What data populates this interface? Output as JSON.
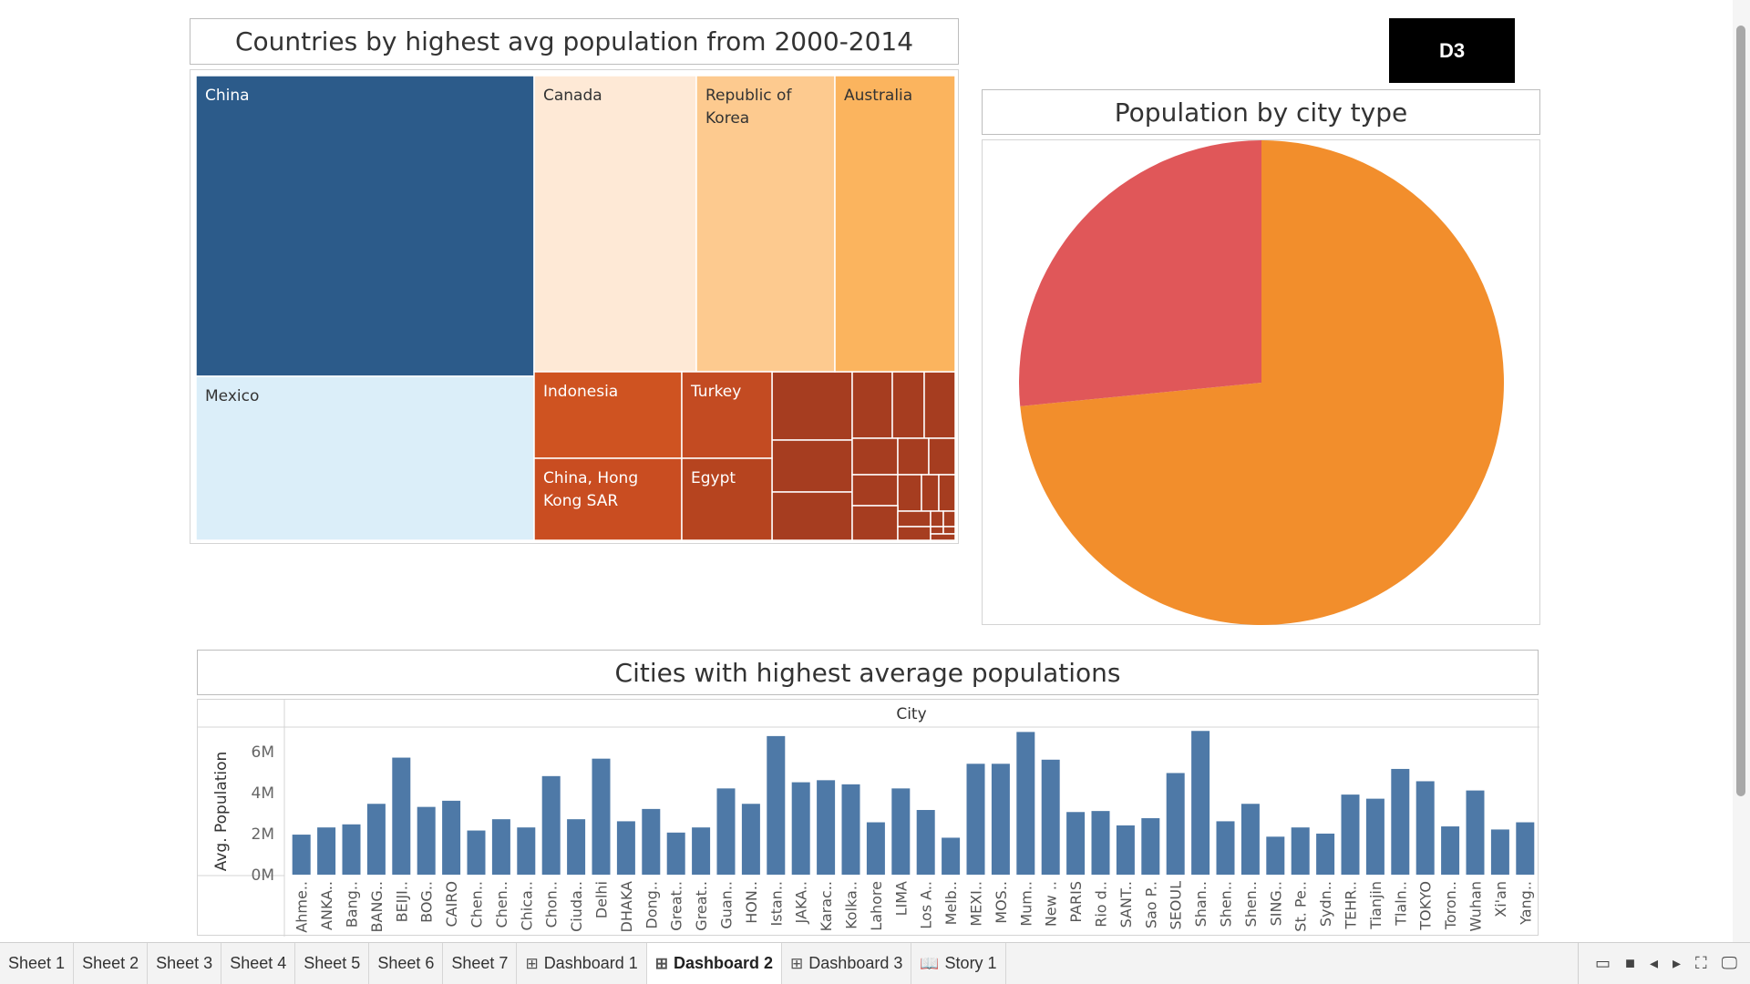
{
  "treemap": {
    "title": "Countries by highest avg population from 2000-2014",
    "labels": {
      "china": "China",
      "mexico": "Mexico",
      "canada": "Canada",
      "korea": "Republic of Korea",
      "australia": "Australia",
      "indonesia": "Indonesia",
      "turkey": "Turkey",
      "hongkong": "China, Hong Kong SAR",
      "egypt": "Egypt"
    },
    "colors": {
      "china": "#2c5b8a",
      "mexico": "#dbeef9",
      "canada": "#fee9d6",
      "korea": "#fdca8f",
      "australia": "#fbb45e",
      "indonesia": "#cf5321",
      "turkey": "#c34b22",
      "hongkong": "#c94d21",
      "egypt": "#b6441f",
      "small": "#a63d20"
    }
  },
  "d3_button": "D3",
  "pie": {
    "title": "Population by city type",
    "slices": [
      {
        "share": 0.7345,
        "color": "#f28e2c"
      },
      {
        "share": 0.2655,
        "color": "#e05759"
      }
    ]
  },
  "bar_chart": {
    "title": "Cities with highest average populations"
  },
  "chart_data": {
    "type": "bar",
    "title": "Cities with highest average populations",
    "column_header": "City",
    "ylabel": "Avg. Population",
    "ylim": [
      0,
      7100000
    ],
    "yticks": [
      {
        "value": 0,
        "label": "0M"
      },
      {
        "value": 2000000,
        "label": "2M"
      },
      {
        "value": 4000000,
        "label": "4M"
      },
      {
        "value": 6000000,
        "label": "6M"
      }
    ],
    "bar_color": "#4e79a7",
    "categories": [
      "Ahme..",
      "ANKA..",
      "Bang..",
      "BANG..",
      "BEIJI..",
      "BOG..",
      "CAIRO",
      "Chen..",
      "Chen..",
      "Chica..",
      "Chon..",
      "Ciuda..",
      "Delhi",
      "DHAKA",
      "Dong..",
      "Great..",
      "Great..",
      "Guan..",
      "HON..",
      "Istan..",
      "JAKA..",
      "Karac..",
      "Kolka..",
      "Lahore",
      "LIMA",
      "Los A..",
      "Melb..",
      "MEXI..",
      "MOS..",
      "Mum..",
      "New ..",
      "PARIS",
      "Rio d..",
      "SANT..",
      "Sao P..",
      "SEOUL",
      "Shan..",
      "Shen..",
      "Shen..",
      "SING..",
      "St. Pe..",
      "Sydn..",
      "TEHR..",
      "Tianjin",
      "Tlaln..",
      "TOKYO",
      "Toron..",
      "Wuhan",
      "Xi'an",
      "Yang.."
    ],
    "values": [
      1950000,
      2300000,
      2450000,
      3450000,
      5700000,
      3300000,
      3600000,
      2150000,
      2700000,
      2300000,
      4800000,
      2700000,
      5650000,
      2600000,
      3200000,
      2050000,
      2300000,
      4200000,
      3450000,
      6750000,
      4500000,
      4600000,
      4400000,
      2550000,
      4200000,
      3150000,
      1800000,
      5400000,
      5400000,
      6950000,
      5600000,
      3050000,
      3100000,
      2400000,
      2750000,
      4950000,
      7000000,
      2600000,
      3450000,
      1850000,
      2300000,
      2000000,
      3900000,
      3700000,
      5150000,
      4550000,
      2350000,
      4100000,
      2200000,
      2550000
    ]
  },
  "tabs": [
    {
      "label": "Sheet 1",
      "icon": ""
    },
    {
      "label": "Sheet 2",
      "icon": ""
    },
    {
      "label": "Sheet 3",
      "icon": ""
    },
    {
      "label": "Sheet 4",
      "icon": ""
    },
    {
      "label": "Sheet 5",
      "icon": ""
    },
    {
      "label": "Sheet 6",
      "icon": ""
    },
    {
      "label": "Sheet 7",
      "icon": ""
    },
    {
      "label": "Dashboard 1",
      "icon": "dashboard-icon"
    },
    {
      "label": "Dashboard 2",
      "icon": "dashboard-icon",
      "active": true
    },
    {
      "label": "Dashboard 3",
      "icon": "dashboard-icon"
    },
    {
      "label": "Story 1",
      "icon": "story-icon"
    }
  ]
}
